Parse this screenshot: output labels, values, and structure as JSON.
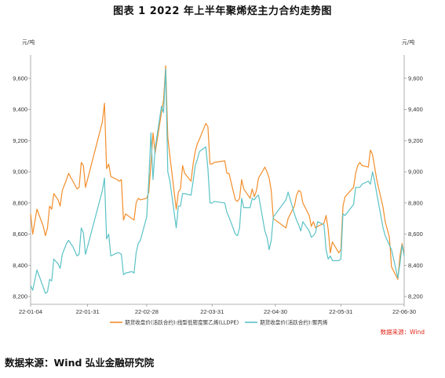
{
  "figure": {
    "title": "图表 1 2022 年上半年聚烯烃主力合约走势图",
    "footer_source": "数据来源：Wind 弘业金融研究院"
  },
  "chart_data": {
    "type": "line",
    "unit_left": "元/吨",
    "unit_right": "元/吨",
    "source_note": "数据来源：Wind",
    "ylim": [
      8150,
      9750
    ],
    "yticks": [
      8200,
      8400,
      8600,
      8800,
      9000,
      9200,
      9400,
      9600
    ],
    "ytick_labels": [
      "8,200",
      "8,400",
      "8,600",
      "8,800",
      "9,000",
      "9,200",
      "9,400",
      "9,600"
    ],
    "xlim": [
      "2022-01-04",
      "2022-06-30"
    ],
    "xticks": [
      "2022-01-04",
      "2022-01-31",
      "2022-02-28",
      "2022-03-31",
      "2022-04-30",
      "2022-05-31",
      "2022-06-30"
    ],
    "xtick_labels": [
      "22-01-04",
      "22-01-31",
      "22-02-28",
      "22-03-31",
      "22-04-30",
      "22-05-31",
      "22-06-30"
    ],
    "grid": false,
    "legend_position": "bottom",
    "series": [
      {
        "name": "期货收盘价(活跃合约):线型低密度聚乙烯(LLDPE)",
        "color": "#f28e2b",
        "points": [
          [
            "2022-01-04",
            8730
          ],
          [
            "2022-01-05",
            8600
          ],
          [
            "2022-01-07",
            8760
          ],
          [
            "2022-01-10",
            8650
          ],
          [
            "2022-01-11",
            8590
          ],
          [
            "2022-01-12",
            8640
          ],
          [
            "2022-01-13",
            8780
          ],
          [
            "2022-01-14",
            8760
          ],
          [
            "2022-01-15",
            8860
          ],
          [
            "2022-01-17",
            8820
          ],
          [
            "2022-01-18",
            8780
          ],
          [
            "2022-01-19",
            8880
          ],
          [
            "2022-01-21",
            8950
          ],
          [
            "2022-01-22",
            8990
          ],
          [
            "2022-01-24",
            8940
          ],
          [
            "2022-01-26",
            8890
          ],
          [
            "2022-01-27",
            8900
          ],
          [
            "2022-01-28",
            9060
          ],
          [
            "2022-01-29",
            9040
          ],
          [
            "2022-01-30",
            8900
          ],
          [
            "2022-02-07",
            9320
          ],
          [
            "2022-02-08",
            9440
          ],
          [
            "2022-02-09",
            9020
          ],
          [
            "2022-02-10",
            9050
          ],
          [
            "2022-02-11",
            8970
          ],
          [
            "2022-02-14",
            8950
          ],
          [
            "2022-02-15",
            8940
          ],
          [
            "2022-02-16",
            8950
          ],
          [
            "2022-02-17",
            8690
          ],
          [
            "2022-02-18",
            8730
          ],
          [
            "2022-02-21",
            8700
          ],
          [
            "2022-02-22",
            8690
          ],
          [
            "2022-02-23",
            8800
          ],
          [
            "2022-02-24",
            8830
          ],
          [
            "2022-02-25",
            8820
          ],
          [
            "2022-02-28",
            8830
          ],
          [
            "2022-03-01",
            8870
          ],
          [
            "2022-03-02",
            9050
          ],
          [
            "2022-03-03",
            9250
          ],
          [
            "2022-03-04",
            9120
          ],
          [
            "2022-03-07",
            9380
          ],
          [
            "2022-03-08",
            9460
          ],
          [
            "2022-03-09",
            9680
          ],
          [
            "2022-03-10",
            9220
          ],
          [
            "2022-03-11",
            9100
          ],
          [
            "2022-03-14",
            8760
          ],
          [
            "2022-03-15",
            8870
          ],
          [
            "2022-03-16",
            8890
          ],
          [
            "2022-03-17",
            9040
          ],
          [
            "2022-03-18",
            8990
          ],
          [
            "2022-03-21",
            8940
          ],
          [
            "2022-03-22",
            9050
          ],
          [
            "2022-03-23",
            9130
          ],
          [
            "2022-03-24",
            9180
          ],
          [
            "2022-03-25",
            9210
          ],
          [
            "2022-03-28",
            9310
          ],
          [
            "2022-03-29",
            9290
          ],
          [
            "2022-03-30",
            9050
          ],
          [
            "2022-03-31",
            9050
          ],
          [
            "2022-04-01",
            9060
          ],
          [
            "2022-04-06",
            9070
          ],
          [
            "2022-04-07",
            8990
          ],
          [
            "2022-04-08",
            8990
          ],
          [
            "2022-04-11",
            8820
          ],
          [
            "2022-04-12",
            8810
          ],
          [
            "2022-04-13",
            8830
          ],
          [
            "2022-04-14",
            8950
          ],
          [
            "2022-04-15",
            8890
          ],
          [
            "2022-04-18",
            8830
          ],
          [
            "2022-04-19",
            8890
          ],
          [
            "2022-04-20",
            8840
          ],
          [
            "2022-04-21",
            8880
          ],
          [
            "2022-04-22",
            8960
          ],
          [
            "2022-04-25",
            9030
          ],
          [
            "2022-04-26",
            9000
          ],
          [
            "2022-04-27",
            8960
          ],
          [
            "2022-04-28",
            8880
          ],
          [
            "2022-04-29",
            8700
          ],
          [
            "2022-05-05",
            8640
          ],
          [
            "2022-05-06",
            8700
          ],
          [
            "2022-05-09",
            8780
          ],
          [
            "2022-05-10",
            8850
          ],
          [
            "2022-05-11",
            8880
          ],
          [
            "2022-05-12",
            8870
          ],
          [
            "2022-05-13",
            8800
          ],
          [
            "2022-05-16",
            8720
          ],
          [
            "2022-05-17",
            8650
          ],
          [
            "2022-05-18",
            8680
          ],
          [
            "2022-05-19",
            8640
          ],
          [
            "2022-05-20",
            8650
          ],
          [
            "2022-05-23",
            8670
          ],
          [
            "2022-05-24",
            8720
          ],
          [
            "2022-05-25",
            8630
          ],
          [
            "2022-05-26",
            8480
          ],
          [
            "2022-05-27",
            8550
          ],
          [
            "2022-05-30",
            8480
          ],
          [
            "2022-05-31",
            8500
          ],
          [
            "2022-06-01",
            8780
          ],
          [
            "2022-06-02",
            8840
          ],
          [
            "2022-06-06",
            8900
          ],
          [
            "2022-06-07",
            8990
          ],
          [
            "2022-06-08",
            9040
          ],
          [
            "2022-06-09",
            9060
          ],
          [
            "2022-06-10",
            9040
          ],
          [
            "2022-06-13",
            9030
          ],
          [
            "2022-06-14",
            9140
          ],
          [
            "2022-06-15",
            9110
          ],
          [
            "2022-06-16",
            9030
          ],
          [
            "2022-06-17",
            8950
          ],
          [
            "2022-06-20",
            8770
          ],
          [
            "2022-06-21",
            8680
          ],
          [
            "2022-06-22",
            8630
          ],
          [
            "2022-06-23",
            8580
          ],
          [
            "2022-06-24",
            8390
          ],
          [
            "2022-06-27",
            8310
          ],
          [
            "2022-06-28",
            8460
          ],
          [
            "2022-06-29",
            8540
          ],
          [
            "2022-06-30",
            8470
          ]
        ]
      },
      {
        "name": "期货收盘价(活跃合约):聚丙烯",
        "color": "#5bc2c6",
        "points": [
          [
            "2022-01-04",
            8270
          ],
          [
            "2022-01-05",
            8240
          ],
          [
            "2022-01-07",
            8370
          ],
          [
            "2022-01-10",
            8260
          ],
          [
            "2022-01-11",
            8220
          ],
          [
            "2022-01-12",
            8230
          ],
          [
            "2022-01-13",
            8310
          ],
          [
            "2022-01-14",
            8300
          ],
          [
            "2022-01-15",
            8440
          ],
          [
            "2022-01-17",
            8410
          ],
          [
            "2022-01-18",
            8380
          ],
          [
            "2022-01-19",
            8470
          ],
          [
            "2022-01-21",
            8540
          ],
          [
            "2022-01-22",
            8560
          ],
          [
            "2022-01-24",
            8520
          ],
          [
            "2022-01-26",
            8460
          ],
          [
            "2022-01-27",
            8470
          ],
          [
            "2022-01-28",
            8640
          ],
          [
            "2022-01-29",
            8610
          ],
          [
            "2022-01-30",
            8470
          ],
          [
            "2022-02-07",
            8880
          ],
          [
            "2022-02-08",
            8960
          ],
          [
            "2022-02-09",
            8570
          ],
          [
            "2022-02-10",
            8600
          ],
          [
            "2022-02-11",
            8460
          ],
          [
            "2022-02-14",
            8480
          ],
          [
            "2022-02-15",
            8480
          ],
          [
            "2022-02-16",
            8470
          ],
          [
            "2022-02-17",
            8340
          ],
          [
            "2022-02-18",
            8350
          ],
          [
            "2022-02-21",
            8360
          ],
          [
            "2022-02-22",
            8350
          ],
          [
            "2022-02-23",
            8480
          ],
          [
            "2022-02-24",
            8540
          ],
          [
            "2022-02-25",
            8560
          ],
          [
            "2022-02-28",
            8710
          ],
          [
            "2022-03-01",
            8950
          ],
          [
            "2022-03-02",
            9250
          ],
          [
            "2022-03-03",
            8950
          ],
          [
            "2022-03-04",
            9150
          ],
          [
            "2022-03-07",
            9420
          ],
          [
            "2022-03-08",
            9380
          ],
          [
            "2022-03-09",
            9660
          ],
          [
            "2022-03-10",
            9000
          ],
          [
            "2022-03-11",
            8940
          ],
          [
            "2022-03-14",
            8640
          ],
          [
            "2022-03-15",
            8780
          ],
          [
            "2022-03-16",
            8780
          ],
          [
            "2022-03-17",
            8860
          ],
          [
            "2022-03-18",
            8860
          ],
          [
            "2022-03-21",
            8850
          ],
          [
            "2022-03-22",
            8940
          ],
          [
            "2022-03-23",
            9040
          ],
          [
            "2022-03-24",
            9080
          ],
          [
            "2022-03-25",
            9130
          ],
          [
            "2022-03-28",
            9160
          ],
          [
            "2022-03-29",
            9020
          ],
          [
            "2022-03-30",
            8800
          ],
          [
            "2022-03-31",
            8800
          ],
          [
            "2022-04-01",
            8810
          ],
          [
            "2022-04-06",
            8800
          ],
          [
            "2022-04-07",
            8740
          ],
          [
            "2022-04-08",
            8710
          ],
          [
            "2022-04-11",
            8600
          ],
          [
            "2022-04-12",
            8590
          ],
          [
            "2022-04-13",
            8640
          ],
          [
            "2022-04-14",
            8830
          ],
          [
            "2022-04-15",
            8770
          ],
          [
            "2022-04-18",
            8770
          ],
          [
            "2022-04-19",
            8830
          ],
          [
            "2022-04-20",
            8820
          ],
          [
            "2022-04-21",
            8840
          ],
          [
            "2022-04-22",
            8850
          ],
          [
            "2022-04-25",
            8620
          ],
          [
            "2022-04-26",
            8580
          ],
          [
            "2022-04-27",
            8500
          ],
          [
            "2022-04-28",
            8560
          ],
          [
            "2022-04-29",
            8710
          ],
          [
            "2022-05-05",
            8820
          ],
          [
            "2022-05-06",
            8870
          ],
          [
            "2022-05-09",
            8730
          ],
          [
            "2022-05-10",
            8690
          ],
          [
            "2022-05-11",
            8660
          ],
          [
            "2022-05-12",
            8620
          ],
          [
            "2022-05-13",
            8680
          ],
          [
            "2022-05-16",
            8620
          ],
          [
            "2022-05-17",
            8580
          ],
          [
            "2022-05-18",
            8590
          ],
          [
            "2022-05-19",
            8610
          ],
          [
            "2022-05-20",
            8680
          ],
          [
            "2022-05-23",
            8660
          ],
          [
            "2022-05-24",
            8500
          ],
          [
            "2022-05-25",
            8440
          ],
          [
            "2022-05-26",
            8460
          ],
          [
            "2022-05-27",
            8430
          ],
          [
            "2022-05-30",
            8430
          ],
          [
            "2022-05-31",
            8440
          ],
          [
            "2022-06-01",
            8730
          ],
          [
            "2022-06-02",
            8720
          ],
          [
            "2022-06-06",
            8790
          ],
          [
            "2022-06-07",
            8900
          ],
          [
            "2022-06-08",
            8900
          ],
          [
            "2022-06-09",
            8900
          ],
          [
            "2022-06-10",
            8920
          ],
          [
            "2022-06-13",
            8940
          ],
          [
            "2022-06-14",
            8920
          ],
          [
            "2022-06-15",
            9000
          ],
          [
            "2022-06-16",
            8940
          ],
          [
            "2022-06-17",
            8860
          ],
          [
            "2022-06-20",
            8640
          ],
          [
            "2022-06-21",
            8590
          ],
          [
            "2022-06-22",
            8560
          ],
          [
            "2022-06-23",
            8530
          ],
          [
            "2022-06-24",
            8500
          ],
          [
            "2022-06-27",
            8320
          ],
          [
            "2022-06-28",
            8410
          ],
          [
            "2022-06-29",
            8530
          ],
          [
            "2022-06-30",
            8460
          ]
        ]
      }
    ]
  }
}
